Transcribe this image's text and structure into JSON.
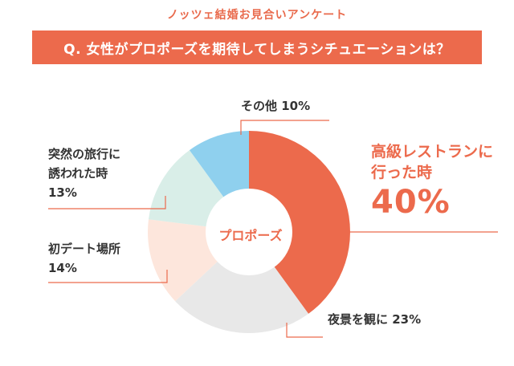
{
  "header": {
    "subtitle": "ノッツェ結婚お見合いアンケート",
    "question": "Q. 女性がプロポーズを期待してしまうシチュエーションは？"
  },
  "chart_data": {
    "type": "pie",
    "donut": true,
    "center_label": "プロポーズ",
    "slices": [
      {
        "label_lines": [
          "高級レストランに",
          "行った時"
        ],
        "value": 40,
        "display": "40%",
        "color": "#ec6a4c"
      },
      {
        "label_lines": [
          "夜景を観に"
        ],
        "value": 23,
        "display": "23%",
        "color": "#e8e8e8"
      },
      {
        "label_lines": [
          "初デート場所"
        ],
        "value": 14,
        "display": "14%",
        "color": "#fde6dc"
      },
      {
        "label_lines": [
          "突然の旅行に",
          "誘われた時"
        ],
        "value": 13,
        "display": "13%",
        "color": "#d9eee8"
      },
      {
        "label_lines": [
          "その他"
        ],
        "value": 10,
        "display": "10%",
        "color": "#8fd0ee"
      }
    ],
    "leader_color": "#ec6a4c"
  }
}
